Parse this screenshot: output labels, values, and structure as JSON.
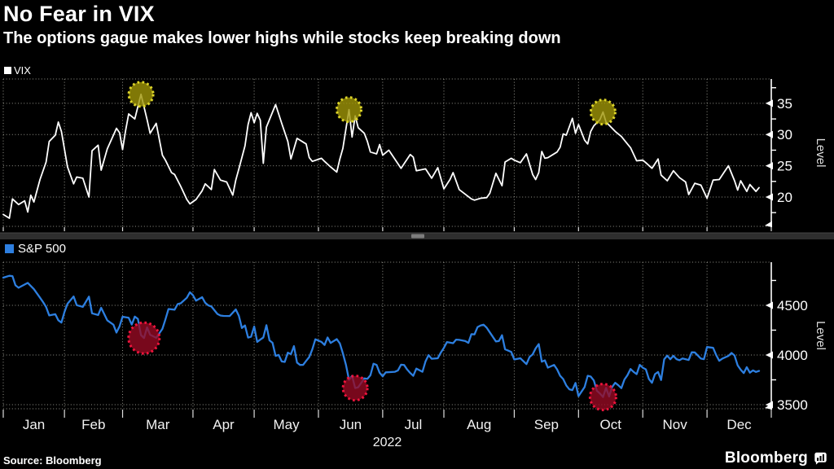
{
  "header": {
    "title": "No Fear in VIX",
    "subtitle": "The options gague makes lower highs while stocks keep breaking down"
  },
  "footer": {
    "source": "Source: Bloomberg",
    "brand": "Bloomberg"
  },
  "colors": {
    "background": "#000000",
    "vix_line": "#ffffff",
    "spx_line": "#2d7fe0",
    "grid": "#93938a",
    "axis": "#ffffff",
    "peak_marker_fill": "#a09608",
    "peak_marker_stroke": "#ded629",
    "trough_marker_fill": "#960a23",
    "trough_marker_stroke": "#f0143c",
    "scrollbar_track": "#2e2e2e",
    "scrollbar_thumb": "#7d7d7d"
  },
  "x_axis": {
    "month_labels": [
      "Jan",
      "Feb",
      "Mar",
      "Apr",
      "May",
      "Jun",
      "Jul",
      "Aug",
      "Sep",
      "Oct",
      "Nov",
      "Dec"
    ],
    "month_start": [
      0,
      20,
      39,
      62,
      82,
      103,
      124,
      144,
      167,
      188,
      209,
      230,
      251
    ],
    "year": "2022"
  },
  "chart_data": [
    {
      "type": "line",
      "name": "VIX",
      "legend": "VIX",
      "ylabel": "Level",
      "legend_position": "top-left",
      "grid": true,
      "y_ticks": [
        35,
        30,
        25,
        20
      ],
      "y_minor_ticks": [
        37.5,
        32.5,
        27.5,
        22.5,
        17.5
      ],
      "ylim": [
        15.3,
        38.9
      ],
      "t": [
        0,
        2,
        3,
        5,
        7,
        8,
        9,
        10,
        12,
        14,
        15,
        17,
        18,
        19,
        20,
        21,
        23,
        24,
        26,
        28,
        29,
        31,
        32,
        34,
        37,
        38,
        39,
        40,
        41,
        43,
        45,
        47,
        48,
        50,
        52,
        53,
        55,
        56,
        58,
        60,
        61,
        63,
        65,
        66,
        68,
        69,
        71,
        73,
        75,
        76,
        77,
        79,
        80,
        81,
        82,
        83,
        84,
        85,
        86,
        89,
        91,
        93,
        94,
        96,
        99,
        100,
        101,
        104,
        105,
        107,
        109,
        110,
        111,
        113,
        114,
        115,
        116,
        118,
        119,
        120,
        122,
        123,
        124,
        126,
        130,
        133,
        134,
        135,
        138,
        140,
        142,
        144,
        146,
        147,
        149,
        153,
        154,
        156,
        158,
        159,
        161,
        163,
        164,
        166,
        167,
        169,
        171,
        173,
        174,
        175,
        176,
        177,
        178,
        181,
        182,
        183,
        184,
        186,
        187,
        188,
        190,
        191,
        192,
        193,
        195,
        196,
        197,
        200,
        202,
        204,
        205,
        207,
        209,
        210,
        212,
        214,
        215,
        217,
        219,
        221,
        223,
        224,
        226,
        228,
        230,
        232,
        234,
        237,
        239,
        240,
        241,
        243,
        244,
        246,
        247
      ],
      "v": [
        17.2,
        16.6,
        19.7,
        18.8,
        19.4,
        17.6,
        20.3,
        19.2,
        22.8,
        25.6,
        28.9,
        29.9,
        32.0,
        30.5,
        27.7,
        24.8,
        22.1,
        23.2,
        23.0,
        20.0,
        27.4,
        28.3,
        24.3,
        27.7,
        31.0,
        30.3,
        27.6,
        30.7,
        33.3,
        32.5,
        36.45,
        32.4,
        30.2,
        31.8,
        26.7,
        25.9,
        23.9,
        23.6,
        21.7,
        19.6,
        18.9,
        19.6,
        21.0,
        22.1,
        21.2,
        24.4,
        22.7,
        22.4,
        20.3,
        22.7,
        24.5,
        28.2,
        31.6,
        33.5,
        31.9,
        33.4,
        32.3,
        25.4,
        31.2,
        34.8,
        31.8,
        28.9,
        26.1,
        29.4,
        28.5,
        26.3,
        25.7,
        26.2,
        25.7,
        24.8,
        24.0,
        26.1,
        27.8,
        34.0,
        29.6,
        33.0,
        31.1,
        30.2,
        28.9,
        27.2,
        26.9,
        28.4,
        26.7,
        27.5,
        24.6,
        26.8,
        26.4,
        24.2,
        24.5,
        23.0,
        24.7,
        21.3,
        22.8,
        23.9,
        21.2,
        19.7,
        19.5,
        19.8,
        19.9,
        20.6,
        23.8,
        21.8,
        25.6,
        26.2,
        25.9,
        25.5,
        26.9,
        23.6,
        22.8,
        23.9,
        27.3,
        26.2,
        26.3,
        27.2,
        28.0,
        30.1,
        29.9,
        32.6,
        30.2,
        31.6,
        29.1,
        28.5,
        30.5,
        31.4,
        32.4,
        33.6,
        32.0,
        30.5,
        29.7,
        28.5,
        27.9,
        25.8,
        25.9,
        25.5,
        24.6,
        26.1,
        23.5,
        22.6,
        24.2,
        23.1,
        22.4,
        20.4,
        22.2,
        21.9,
        19.8,
        22.7,
        22.8,
        25.0,
        22.6,
        21.1,
        22.6,
        20.9,
        22.0,
        20.9,
        21.5
      ],
      "markers": [
        {
          "t": 45,
          "v": 36.45,
          "r": 15,
          "label": "peak-march"
        },
        {
          "t": 113,
          "v": 34.0,
          "r": 15,
          "label": "peak-june"
        },
        {
          "t": 196,
          "v": 33.6,
          "r": 15,
          "label": "peak-october"
        }
      ]
    },
    {
      "type": "line",
      "name": "S&P 500",
      "legend": "S&P 500",
      "ylabel": "Level",
      "legend_position": "top-left",
      "grid": true,
      "y_ticks": [
        4500,
        4000,
        3500
      ],
      "y_minor_ticks": [
        4750,
        4250,
        3750
      ],
      "ylim": [
        3459,
        4934
      ],
      "t": [
        0,
        2,
        3,
        4,
        5,
        8,
        10,
        12,
        13,
        14,
        15,
        17,
        18,
        19,
        20,
        21,
        23,
        24,
        26,
        28,
        29,
        31,
        32,
        34,
        36,
        37,
        38,
        39,
        41,
        42,
        43,
        44,
        45,
        46,
        47,
        48,
        50,
        52,
        53,
        54,
        56,
        57,
        58,
        60,
        61,
        62,
        63,
        65,
        66,
        67,
        68,
        70,
        71,
        72,
        74,
        76,
        77,
        78,
        79,
        80,
        81,
        82,
        83,
        84,
        85,
        86,
        87,
        88,
        89,
        90,
        91,
        92,
        93,
        94,
        95,
        96,
        97,
        98,
        99,
        100,
        101,
        102,
        104,
        105,
        106,
        107,
        109,
        110,
        111,
        112,
        113,
        114,
        115,
        116,
        118,
        119,
        120,
        121,
        122,
        123,
        124,
        125,
        128,
        129,
        130,
        131,
        132,
        133,
        134,
        135,
        137,
        138,
        139,
        140,
        142,
        143,
        144,
        145,
        147,
        148,
        149,
        151,
        152,
        153,
        154,
        155,
        156,
        157,
        158,
        159,
        161,
        162,
        163,
        164,
        166,
        167,
        169,
        171,
        172,
        173,
        174,
        175,
        176,
        177,
        178,
        180,
        181,
        182,
        183,
        184,
        185,
        186,
        187,
        188,
        190,
        191,
        192,
        193,
        194,
        195,
        196,
        197,
        198,
        199,
        200,
        201,
        202,
        203,
        204,
        205,
        206,
        207,
        208,
        209,
        210,
        211,
        212,
        213,
        214,
        215,
        216,
        217,
        218,
        219,
        220,
        221,
        222,
        224,
        225,
        226,
        228,
        229,
        230,
        232,
        233,
        234,
        235,
        237,
        238,
        239,
        240,
        241,
        242,
        243,
        244,
        245,
        246,
        247
      ],
      "v": [
        4778,
        4797,
        4794,
        4701,
        4677,
        4726,
        4663,
        4577,
        4533,
        4483,
        4398,
        4410,
        4350,
        4326,
        4432,
        4516,
        4589,
        4501,
        4484,
        4587,
        4419,
        4402,
        4475,
        4349,
        4305,
        4226,
        4289,
        4385,
        4374,
        4306,
        4387,
        4363,
        4201,
        4170,
        4278,
        4204,
        4173,
        4263,
        4358,
        4463,
        4456,
        4512,
        4520,
        4576,
        4632,
        4602,
        4546,
        4582,
        4525,
        4500,
        4488,
        4413,
        4397,
        4393,
        4392,
        4459,
        4394,
        4272,
        4297,
        4175,
        4184,
        4287,
        4132,
        4155,
        4176,
        4300,
        4147,
        4123,
        3991,
        4001,
        3935,
        3930,
        4024,
        4008,
        4089,
        3924,
        3900,
        3901,
        3941,
        3979,
        4058,
        4158,
        4132,
        4101,
        4177,
        4121,
        4160,
        4116,
        4017,
        3900,
        3750,
        3790,
        3667,
        3675,
        3765,
        3760,
        3796,
        3912,
        3900,
        3821,
        3785,
        3825,
        3831,
        3845,
        3902,
        3899,
        3854,
        3819,
        3790,
        3863,
        3831,
        3937,
        3999,
        3962,
        3967,
        4024,
        4072,
        4130,
        4119,
        4155,
        4152,
        4140,
        4122,
        4210,
        4207,
        4280,
        4297,
        4305,
        4274,
        4228,
        4137,
        4141,
        4199,
        4058,
        4031,
        3955,
        3967,
        3908,
        3980,
        4006,
        4067,
        4110,
        3933,
        3946,
        3873,
        3900,
        3856,
        3790,
        3758,
        3693,
        3655,
        3647,
        3719,
        3586,
        3678,
        3791,
        3783,
        3744,
        3640,
        3612,
        3577,
        3670,
        3583,
        3678,
        3720,
        3695,
        3666,
        3753,
        3797,
        3859,
        3830,
        3807,
        3901,
        3872,
        3856,
        3759,
        3720,
        3807,
        3829,
        3748,
        3956,
        3993,
        3957,
        3992,
        3959,
        3947,
        3965,
        3950,
        4027,
        4026,
        3964,
        3958,
        4080,
        4072,
        3998,
        3942,
        3964,
        3991,
        4020,
        3995,
        3896,
        3852,
        3818,
        3878,
        3822,
        3845,
        3829,
        3840
      ],
      "markers": [
        {
          "t": 46,
          "v": 4170,
          "r": 19,
          "label": "low-march"
        },
        {
          "t": 115,
          "v": 3667,
          "r": 15,
          "label": "low-june"
        },
        {
          "t": 196,
          "v": 3577,
          "r": 16,
          "label": "low-october"
        }
      ]
    }
  ]
}
